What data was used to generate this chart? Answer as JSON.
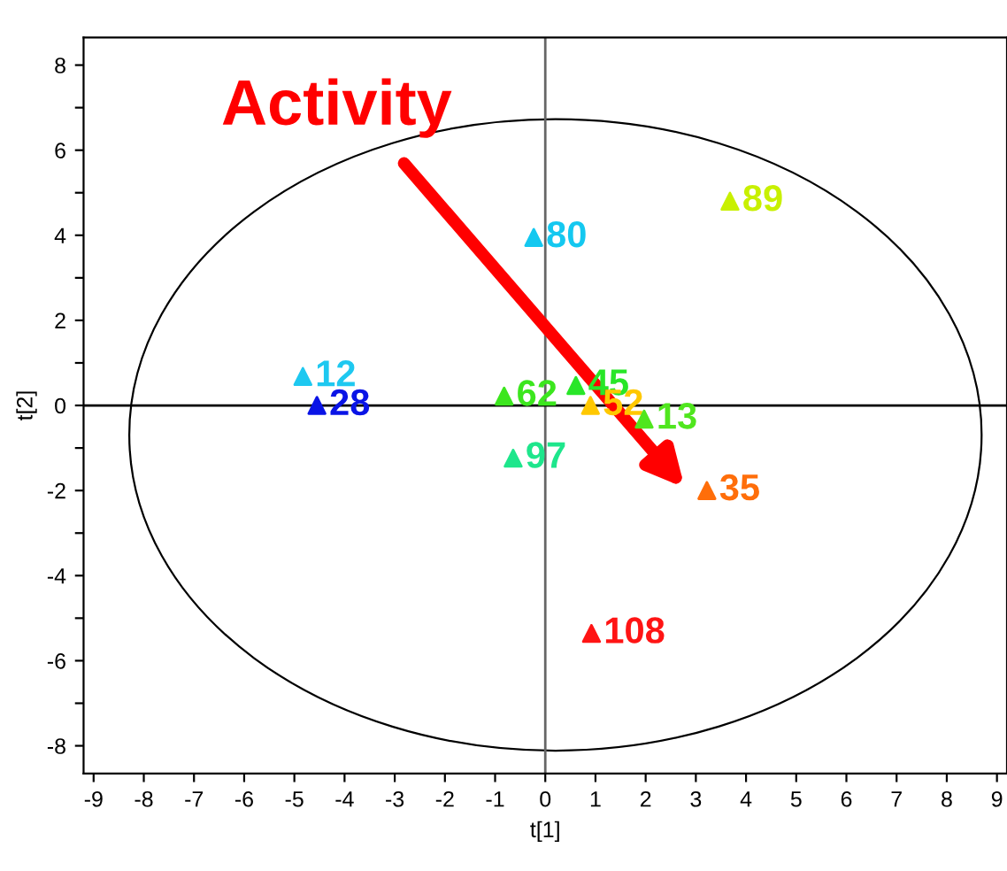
{
  "chart_data": {
    "type": "scatter",
    "xlabel": "t[1]",
    "ylabel": "t[2]",
    "marker": "triangle",
    "grid": false,
    "legend": false,
    "xlim": [
      -9.2,
      9.2
    ],
    "ylim": [
      -8.65,
      8.65
    ],
    "xticks": [
      -9,
      -8,
      -7,
      -6,
      -5,
      -4,
      -3,
      -2,
      -1,
      0,
      1,
      2,
      3,
      4,
      5,
      6,
      7,
      8,
      9
    ],
    "yticks": [
      -8,
      {
        "value": -7,
        "label": null
      },
      -6,
      {
        "value": -5,
        "label": null
      },
      -4,
      {
        "value": -3,
        "label": null
      },
      -2,
      {
        "value": -1,
        "label": null
      },
      0,
      {
        "value": 1,
        "label": null
      },
      2,
      {
        "value": 3,
        "label": null
      },
      4,
      {
        "value": 5,
        "label": null
      },
      6,
      {
        "value": 7,
        "label": null
      },
      8
    ],
    "ref_lines": [
      {
        "axis": "x",
        "value": 0,
        "color": "#666666"
      },
      {
        "axis": "y",
        "value": 0,
        "color": "#000000"
      }
    ],
    "annotations": [
      "Activity"
    ],
    "series": [
      {
        "name": "12",
        "color": "#1ec8f0",
        "x": [
          -4.83
        ],
        "values": [
          0.68
        ]
      },
      {
        "name": "28",
        "color": "#0a14e6",
        "x": [
          -4.55
        ],
        "values": [
          0.0
        ]
      },
      {
        "name": "62",
        "color": "#3ce61e",
        "x": [
          -0.82
        ],
        "values": [
          0.22
        ]
      },
      {
        "name": "45",
        "color": "#28e628",
        "x": [
          0.61
        ],
        "values": [
          0.47
        ]
      },
      {
        "name": "52",
        "color": "#ffc800",
        "x": [
          0.9
        ],
        "values": [
          0.0
        ]
      },
      {
        "name": "13",
        "color": "#50e61e",
        "x": [
          1.97
        ],
        "values": [
          -0.32
        ]
      },
      {
        "name": "97",
        "color": "#1ee68c",
        "x": [
          -0.64
        ],
        "values": [
          -1.24
        ]
      },
      {
        "name": "35",
        "color": "#ff6e0a",
        "x": [
          3.22
        ],
        "values": [
          -2.0
        ]
      },
      {
        "name": "80",
        "color": "#14c8f0",
        "x": [
          -0.23
        ],
        "values": [
          3.95
        ]
      },
      {
        "name": "89",
        "color": "#c8f000",
        "x": [
          3.68
        ],
        "values": [
          4.8
        ]
      },
      {
        "name": "108",
        "color": "#ff1414",
        "x": [
          0.92
        ],
        "values": [
          -5.36
        ]
      }
    ]
  }
}
